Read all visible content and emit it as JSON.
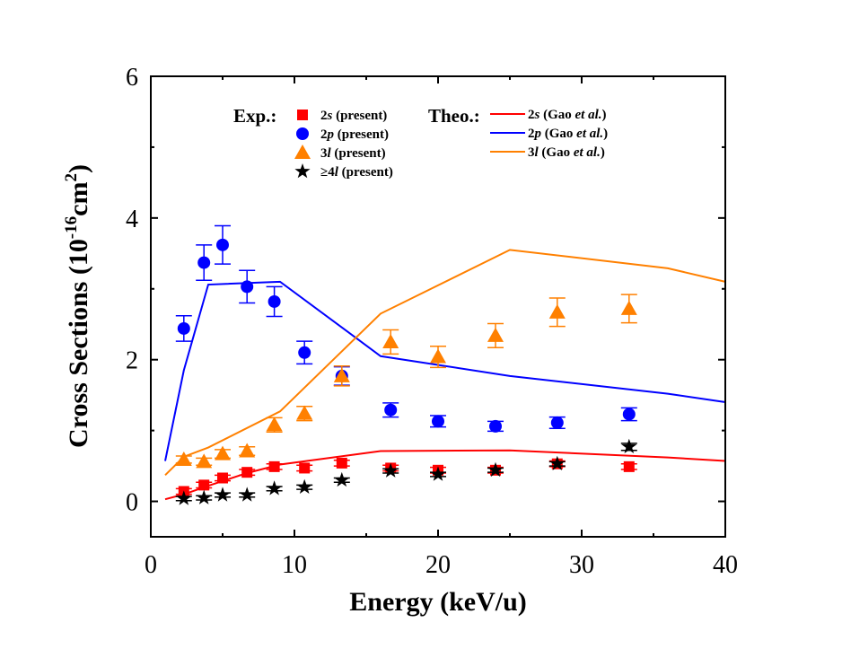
{
  "chart_data": {
    "type": "scatter",
    "xlabel": "Energy (keV/u)",
    "ylabel": "Cross Sections (10-16cm2)",
    "ylabel_parts": {
      "main": "Cross Sections (10",
      "sup1": "-16",
      "mid": "cm",
      "sup2": "2",
      "end": ")"
    },
    "xlim": [
      0,
      40
    ],
    "ylim": [
      -0.5,
      6
    ],
    "xticks": [
      0,
      10,
      20,
      30,
      40
    ],
    "yticks": [
      0,
      2,
      4,
      6
    ],
    "grid": false,
    "legend_placement": "top",
    "legend": {
      "exp_title": "Exp.:",
      "theo_title": "Theo.:"
    },
    "experimental": [
      {
        "name": "2s (present)",
        "label_main": "2s",
        "label_rest": " (present)",
        "prefix": "",
        "marker": "square",
        "color": "#ff0000",
        "x": [
          2.3,
          3.7,
          5.0,
          6.7,
          8.6,
          10.7,
          13.3,
          16.7,
          20.0,
          24.0,
          28.3,
          33.3
        ],
        "y": [
          0.14,
          0.23,
          0.33,
          0.41,
          0.49,
          0.47,
          0.54,
          0.47,
          0.44,
          0.44,
          0.53,
          0.49
        ],
        "err": [
          0.04,
          0.04,
          0.04,
          0.04,
          0.04,
          0.04,
          0.04,
          0.04,
          0.04,
          0.04,
          0.04,
          0.04
        ]
      },
      {
        "name": "2p (present)",
        "label_main": "2p",
        "label_rest": " (present)",
        "prefix": "",
        "marker": "circle",
        "color": "#0000ff",
        "x": [
          2.3,
          3.7,
          5.0,
          6.7,
          8.6,
          10.7,
          13.3,
          16.7,
          20.0,
          24.0,
          28.3,
          33.3
        ],
        "y": [
          2.44,
          3.37,
          3.62,
          3.03,
          2.82,
          2.1,
          1.77,
          1.29,
          1.13,
          1.06,
          1.11,
          1.23
        ],
        "err": [
          0.18,
          0.25,
          0.27,
          0.23,
          0.21,
          0.16,
          0.13,
          0.1,
          0.08,
          0.07,
          0.08,
          0.09
        ]
      },
      {
        "name": "3l (present)",
        "label_main": "3l",
        "label_rest": " (present)",
        "prefix": "",
        "marker": "triangle",
        "color": "#ff8000",
        "x": [
          2.3,
          3.7,
          5.0,
          6.7,
          8.6,
          10.7,
          13.3,
          16.7,
          20.0,
          24.0,
          28.3,
          33.3
        ],
        "y": [
          0.59,
          0.56,
          0.67,
          0.71,
          1.08,
          1.24,
          1.77,
          2.25,
          2.04,
          2.34,
          2.67,
          2.72
        ],
        "err": [
          0.05,
          0.05,
          0.06,
          0.06,
          0.1,
          0.1,
          0.14,
          0.17,
          0.15,
          0.17,
          0.2,
          0.2
        ]
      },
      {
        "name": "≥4l (present)",
        "label_main": "4l",
        "label_rest": " (present)",
        "prefix": "≥",
        "marker": "star",
        "color": "#000000",
        "x": [
          2.3,
          3.7,
          5.0,
          6.7,
          8.6,
          10.7,
          13.3,
          16.7,
          20.0,
          24.0,
          28.3,
          33.3
        ],
        "y": [
          0.04,
          0.05,
          0.09,
          0.09,
          0.18,
          0.2,
          0.3,
          0.43,
          0.38,
          0.44,
          0.53,
          0.77
        ],
        "err": [
          0.03,
          0.03,
          0.03,
          0.03,
          0.03,
          0.03,
          0.03,
          0.03,
          0.03,
          0.03,
          0.03,
          0.05
        ]
      }
    ],
    "theoretical": [
      {
        "name": "2s (Gao et al.)",
        "label_main": "2s",
        "label_mid": " (Gao ",
        "label_it": "et al.",
        "label_end": ")",
        "color": "#ff0000",
        "x": [
          1,
          2.3,
          4,
          6.7,
          9,
          16,
          25,
          36,
          40
        ],
        "y": [
          0.03,
          0.1,
          0.22,
          0.4,
          0.52,
          0.71,
          0.72,
          0.62,
          0.57
        ]
      },
      {
        "name": "2p (Gao et al.)",
        "label_main": "2p",
        "label_mid": " (Gao ",
        "label_it": "et al.",
        "label_end": ")",
        "color": "#0000ff",
        "x": [
          1,
          2.3,
          4,
          9,
          16,
          25,
          36,
          40
        ],
        "y": [
          0.57,
          1.85,
          3.06,
          3.1,
          2.05,
          1.77,
          1.52,
          1.4
        ]
      },
      {
        "name": "3l (Gao et al.)",
        "label_main": "3l",
        "label_mid": " (Gao ",
        "label_it": "et al.",
        "label_end": ")",
        "color": "#ff8000",
        "x": [
          1,
          2.3,
          4,
          9,
          16,
          25,
          36,
          40
        ],
        "y": [
          0.37,
          0.63,
          0.76,
          1.27,
          2.65,
          3.55,
          3.29,
          3.1
        ]
      }
    ]
  }
}
